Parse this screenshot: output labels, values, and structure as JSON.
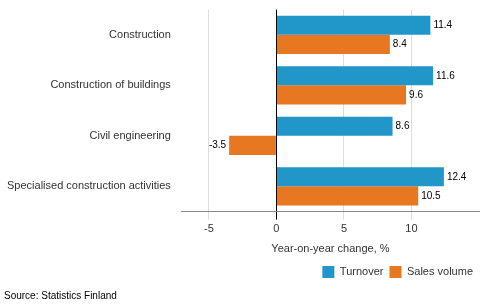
{
  "chart_data": {
    "type": "bar",
    "orientation": "horizontal",
    "categories": [
      "Specialised construction activities",
      "Civil engineering",
      "Construction of buildings",
      "Construction"
    ],
    "series": [
      {
        "name": "Turnover",
        "color": "#2196c8",
        "values": [
          12.4,
          8.6,
          11.6,
          11.4
        ]
      },
      {
        "name": "Sales volume",
        "color": "#e87722",
        "values": [
          10.5,
          -3.5,
          9.6,
          8.4
        ]
      }
    ],
    "xlabel": "Year-on-year change, %",
    "xlim": [
      -7,
      15
    ],
    "xticks": [
      -5,
      0,
      5,
      10
    ],
    "grid": true,
    "legend": "lower right",
    "data_labels": true,
    "annotations": [
      "Source: Statistics Finland"
    ]
  }
}
